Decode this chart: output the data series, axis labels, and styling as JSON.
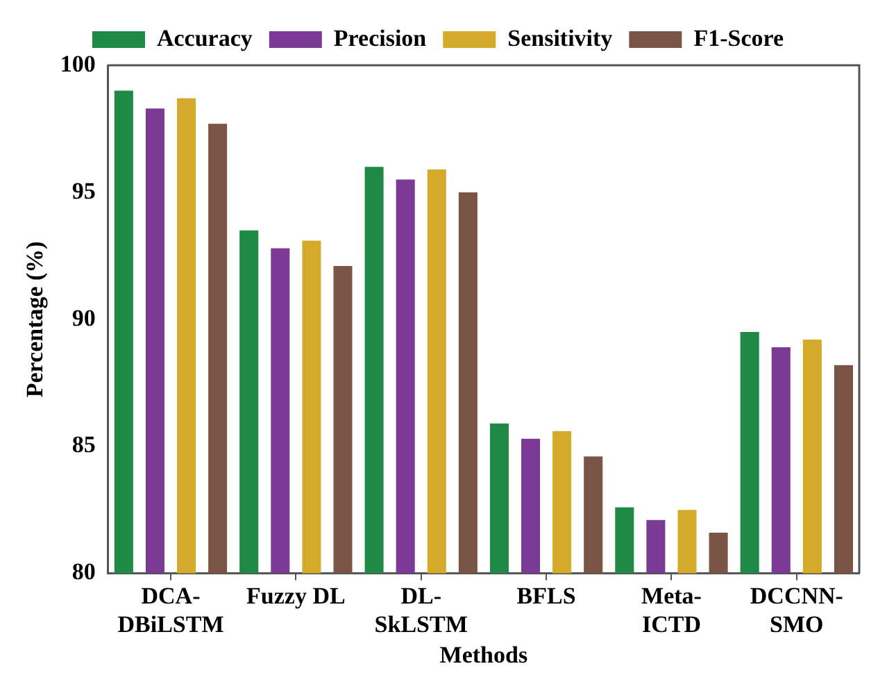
{
  "chart_data": {
    "type": "bar",
    "xlabel": "Methods",
    "ylabel": "Percentage (%)",
    "categories": [
      "DCA-DBiLSTM",
      "Fuzzy DL",
      "DL-SkLSTM",
      "BFLS",
      "Meta-ICTD",
      "DCCNN-SMO"
    ],
    "series": [
      {
        "name": "Accuracy",
        "color": "#1e8a45",
        "values": [
          99.0,
          93.5,
          96.0,
          85.9,
          82.6,
          89.5
        ]
      },
      {
        "name": "Precision",
        "color": "#7b3a96",
        "values": [
          98.3,
          92.8,
          95.5,
          85.3,
          82.1,
          88.9
        ]
      },
      {
        "name": "Sensitivity",
        "color": "#d4aa2a",
        "values": [
          98.7,
          93.1,
          95.9,
          85.6,
          82.5,
          89.2
        ]
      },
      {
        "name": "F1-Score",
        "color": "#7a5546",
        "values": [
          97.7,
          92.1,
          95.0,
          84.6,
          81.6,
          88.2
        ]
      }
    ],
    "ylim": [
      80,
      100
    ],
    "yticks": [
      80,
      85,
      90,
      95,
      100
    ],
    "grid": false,
    "legend": "top"
  }
}
